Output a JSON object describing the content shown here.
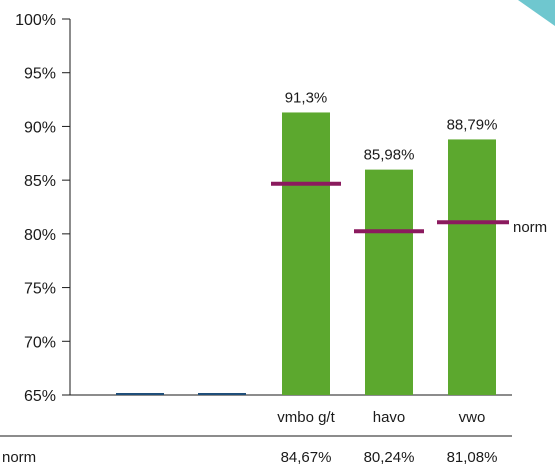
{
  "chart_data": {
    "type": "bar",
    "categories": [
      "",
      "",
      "vmbo g/t",
      "havo",
      "vwo"
    ],
    "values": [
      null,
      null,
      91.3,
      85.98,
      88.79
    ],
    "value_labels": [
      "",
      "",
      "91,3%",
      "85,98%",
      "88,79%"
    ],
    "norm_values": [
      null,
      null,
      84.67,
      80.24,
      81.08
    ],
    "norm_labels": [
      "",
      "",
      "84,67%",
      "80,24%",
      "81,08%"
    ],
    "norm_row_label": "norm",
    "norm_legend_label": "norm",
    "y_ticks": [
      100,
      95,
      90,
      85,
      80,
      75,
      70,
      65
    ],
    "y_tick_labels": [
      "100%",
      "95%",
      "90%",
      "85%",
      "80%",
      "75%",
      "70%",
      "65%"
    ],
    "ylim": [
      65,
      100
    ],
    "grid": false,
    "colors": {
      "bar": "#5ca82e",
      "norm": "#8b1a5e",
      "empty_marker": "#1f4e79",
      "axis": "#1a1a1a",
      "corner": "#6fc7cf"
    }
  }
}
